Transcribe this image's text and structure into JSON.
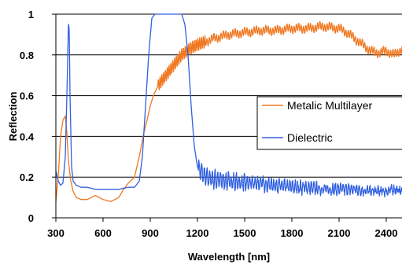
{
  "chart_data": {
    "type": "line",
    "title": "",
    "xlabel": "Wavelength [nm]",
    "ylabel": "Reflection",
    "xlim": [
      300,
      2500
    ],
    "ylim": [
      0,
      1
    ],
    "x_ticks": [
      300,
      600,
      900,
      1200,
      1500,
      1800,
      2100,
      2400
    ],
    "y_ticks": [
      0,
      0.2,
      0.4,
      0.6,
      0.8,
      1
    ],
    "y_tick_labels": [
      "0",
      "0.2",
      "0.4",
      "0.6",
      "0.8",
      "1"
    ],
    "grid": "horizontal",
    "legend_position": "right",
    "series": [
      {
        "name": "Metalic Multilayer",
        "color": "#F07820",
        "oscillation": "high-frequency fringes above 950 nm",
        "x": [
          300,
          315,
          330,
          345,
          360,
          370,
          380,
          395,
          410,
          430,
          460,
          500,
          550,
          600,
          650,
          700,
          730,
          760,
          800,
          830,
          860,
          880,
          900,
          920,
          950,
          1000,
          1050,
          1100,
          1150,
          1200,
          1300,
          1400,
          1500,
          1600,
          1700,
          1800,
          1900,
          2000,
          2100,
          2150,
          2200,
          2250,
          2300,
          2350,
          2400,
          2450,
          2500
        ],
        "values": [
          0.08,
          0.2,
          0.4,
          0.48,
          0.5,
          0.42,
          0.28,
          0.18,
          0.13,
          0.1,
          0.09,
          0.09,
          0.11,
          0.09,
          0.08,
          0.1,
          0.14,
          0.17,
          0.2,
          0.3,
          0.42,
          0.48,
          0.55,
          0.6,
          0.65,
          0.7,
          0.75,
          0.8,
          0.83,
          0.85,
          0.88,
          0.9,
          0.91,
          0.92,
          0.92,
          0.93,
          0.93,
          0.94,
          0.93,
          0.91,
          0.88,
          0.85,
          0.82,
          0.81,
          0.82,
          0.8,
          0.83
        ]
      },
      {
        "name": "Dielectric",
        "color": "#3060E0",
        "oscillation": "noisy fringes above 1200 nm",
        "x": [
          300,
          315,
          330,
          345,
          360,
          370,
          380,
          385,
          390,
          400,
          410,
          430,
          460,
          500,
          550,
          600,
          650,
          700,
          760,
          800,
          830,
          850,
          870,
          890,
          910,
          930,
          960,
          1000,
          1050,
          1100,
          1120,
          1140,
          1160,
          1180,
          1200,
          1250,
          1300,
          1400,
          1500,
          1600,
          1700,
          1800,
          1900,
          2000,
          2100,
          2200,
          2300,
          2400,
          2450,
          2500
        ],
        "values": [
          0.23,
          0.18,
          0.16,
          0.17,
          0.3,
          0.6,
          0.95,
          0.93,
          0.6,
          0.25,
          0.18,
          0.16,
          0.15,
          0.15,
          0.14,
          0.14,
          0.14,
          0.14,
          0.15,
          0.15,
          0.18,
          0.3,
          0.55,
          0.8,
          0.98,
          1,
          1,
          1,
          1,
          1,
          0.95,
          0.8,
          0.55,
          0.35,
          0.25,
          0.2,
          0.19,
          0.18,
          0.17,
          0.17,
          0.16,
          0.15,
          0.15,
          0.14,
          0.14,
          0.14,
          0.13,
          0.13,
          0.14,
          0.13
        ]
      }
    ]
  }
}
